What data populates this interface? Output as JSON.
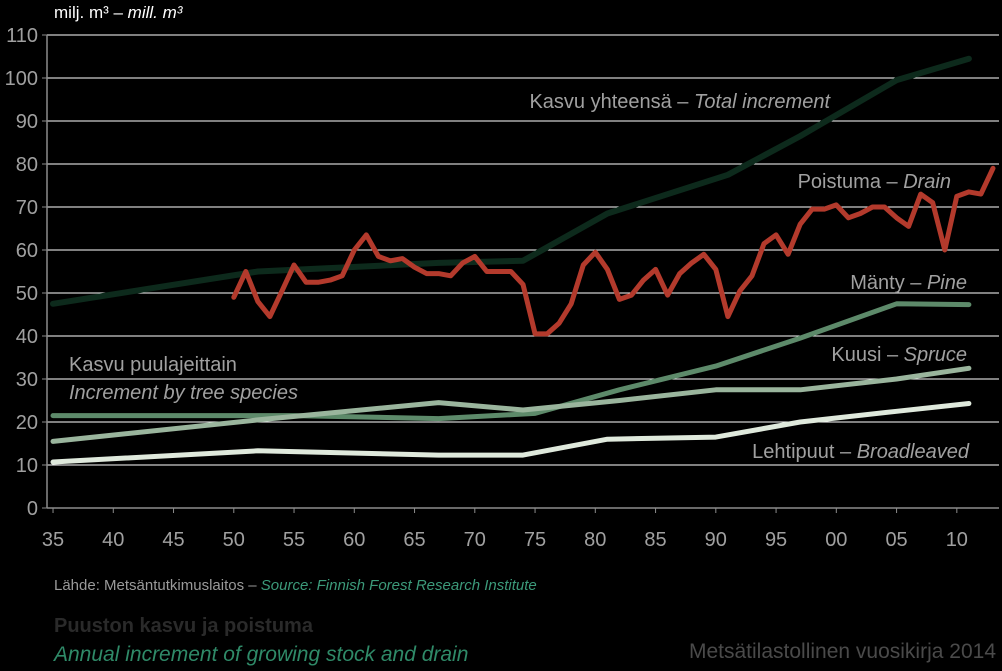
{
  "unit_label": {
    "fi": "milj. m³ – ",
    "en": "mill. m³"
  },
  "source": {
    "fi": "Lähde: Metsäntutkimuslaitos – ",
    "en": "Source: Finnish Forest Research Institute"
  },
  "title": {
    "fi": "Puuston kasvu ja poistuma",
    "en": "Annual increment of growing stock and drain"
  },
  "yearbook": "Metsätilastollinen vuosikirja 2014",
  "colors": {
    "background": "#000000",
    "total": "#0d2a1c",
    "drain": "#b33a2c",
    "pine": "#5d8a6a",
    "spruce": "#9ab59d",
    "broadleaved": "#dfe9dc",
    "axis": "#8c8c8c"
  },
  "chart_data": {
    "type": "line",
    "xlim": [
      1934.5,
      2013.5
    ],
    "ylim": [
      0,
      110
    ],
    "yticks": [
      "0",
      "10",
      "20",
      "30",
      "40",
      "50",
      "60",
      "70",
      "80",
      "90",
      "100",
      "110"
    ],
    "xticks": [
      {
        "year": 1935,
        "label": "35"
      },
      {
        "year": 1940,
        "label": "40"
      },
      {
        "year": 1945,
        "label": "45"
      },
      {
        "year": 1950,
        "label": "50"
      },
      {
        "year": 1955,
        "label": "55"
      },
      {
        "year": 1960,
        "label": "60"
      },
      {
        "year": 1965,
        "label": "65"
      },
      {
        "year": 1970,
        "label": "70"
      },
      {
        "year": 1975,
        "label": "75"
      },
      {
        "year": 1980,
        "label": "80"
      },
      {
        "year": 1985,
        "label": "85"
      },
      {
        "year": 1990,
        "label": "90"
      },
      {
        "year": 1995,
        "label": "95"
      },
      {
        "year": 2000,
        "label": "00"
      },
      {
        "year": 2005,
        "label": "05"
      },
      {
        "year": 2010,
        "label": "10"
      }
    ],
    "group_label": {
      "fi": "Kasvu puulajeittain",
      "en": "Increment by tree species"
    },
    "series": [
      {
        "key": "total",
        "name_fi": "Kasvu yhteensä – ",
        "name_en": "Total increment",
        "width": 6,
        "x": [
          1935,
          1952,
          1967,
          1974,
          1981,
          1991,
          1997,
          2005,
          2011
        ],
        "y": [
          47.5,
          55,
          57,
          57.5,
          68.5,
          77.5,
          86.5,
          99.5,
          104.5
        ]
      },
      {
        "key": "drain",
        "name_fi": "Poistuma – ",
        "name_en": "Drain",
        "width": 5,
        "x": [
          1950,
          1951,
          1952,
          1953,
          1954,
          1955,
          1956,
          1957,
          1958,
          1959,
          1960,
          1961,
          1962,
          1963,
          1964,
          1965,
          1966,
          1967,
          1968,
          1969,
          1970,
          1971,
          1972,
          1973,
          1974,
          1975,
          1976,
          1977,
          1978,
          1979,
          1980,
          1981,
          1982,
          1983,
          1984,
          1985,
          1986,
          1987,
          1988,
          1989,
          1990,
          1991,
          1992,
          1993,
          1994,
          1995,
          1996,
          1997,
          1998,
          1999,
          2000,
          2001,
          2002,
          2003,
          2004,
          2005,
          2006,
          2007,
          2008,
          2009,
          2010,
          2011,
          2012,
          2013
        ],
        "y": [
          49,
          55,
          48,
          44.5,
          50.5,
          56.5,
          52.5,
          52.5,
          53,
          54,
          60,
          63.5,
          58.5,
          57.5,
          58,
          56,
          54.5,
          54.5,
          54,
          57,
          58.5,
          55,
          55,
          55,
          52,
          40.5,
          40.5,
          43,
          47.5,
          56.5,
          59.5,
          55.5,
          48.5,
          49.5,
          53,
          55.5,
          49.5,
          54.5,
          57,
          59,
          55.5,
          44.5,
          50.5,
          54,
          61.5,
          63.5,
          59,
          66,
          69.5,
          69.5,
          70.5,
          67.5,
          68.5,
          70,
          70,
          67.5,
          65.5,
          73,
          71,
          60,
          72.5,
          73.5,
          73,
          79
        ]
      },
      {
        "key": "pine",
        "name_fi": "Mänty – ",
        "name_en": "Pine",
        "width": 5,
        "x": [
          1935,
          1955,
          1967,
          1975,
          1982,
          1990,
          1997,
          2005,
          2011
        ],
        "y": [
          21.5,
          21.5,
          20.8,
          22,
          27.5,
          33,
          39.5,
          47.5,
          47.3
        ]
      },
      {
        "key": "spruce",
        "name_fi": "Kuusi – ",
        "name_en": "Spruce",
        "width": 5,
        "x": [
          1935,
          1952,
          1967,
          1974,
          1982,
          1990,
          1997,
          2005,
          2011
        ],
        "y": [
          15.5,
          20.5,
          24.5,
          22.8,
          25,
          27.5,
          27.5,
          30,
          32.5
        ]
      },
      {
        "key": "broadleaved",
        "name_fi": "Lehtipuut – ",
        "name_en": "Broadleaved",
        "width": 5,
        "x": [
          1935,
          1952,
          1967,
          1974,
          1981,
          1990,
          1997,
          2005,
          2011
        ],
        "y": [
          10.7,
          13.3,
          12.3,
          12.3,
          16,
          16.5,
          20,
          22.5,
          24.3
        ]
      }
    ]
  }
}
